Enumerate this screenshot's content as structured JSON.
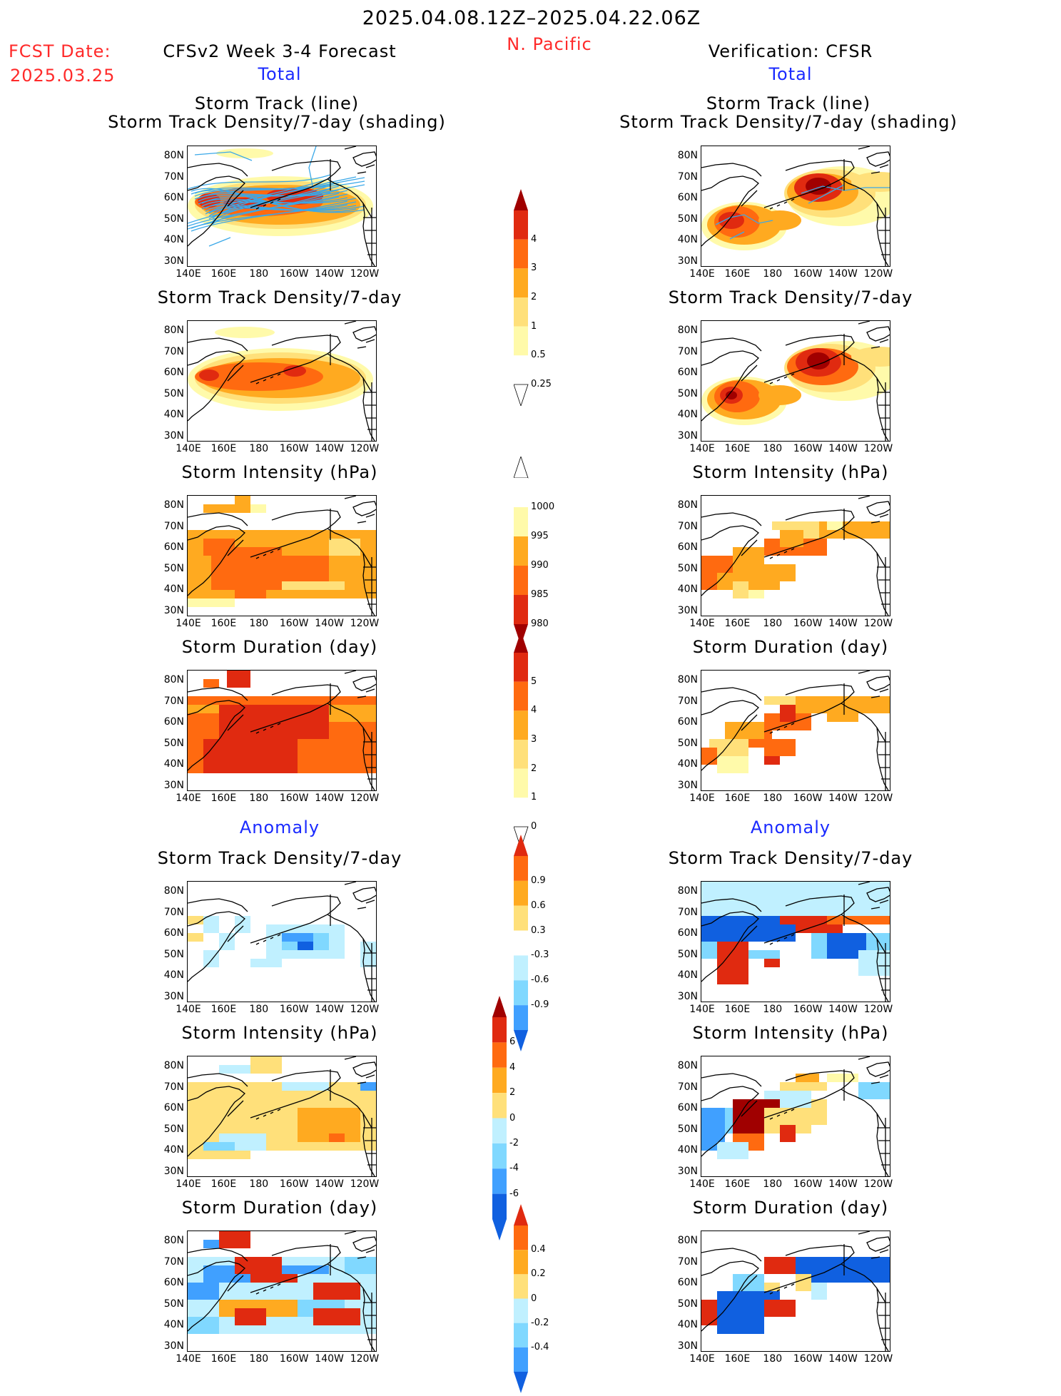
{
  "header": {
    "date_range": "2025.04.08.12Z–2025.04.22.06Z",
    "region": "N. Pacific",
    "fcst_label": "FCST Date:",
    "fcst_date": "2025.03.25",
    "left_model": "CFSv2 Week 3-4 Forecast",
    "right_model": "Verification: CFSR",
    "total_label": "Total",
    "anomaly_label": "Anomaly"
  },
  "axes": {
    "lat_ticks": [
      "80N",
      "70N",
      "60N",
      "50N",
      "40N",
      "30N"
    ],
    "lon_ticks": [
      "140E",
      "160E",
      "180",
      "160W",
      "140W",
      "120W"
    ]
  },
  "panels": {
    "track_title_1": "Storm Track (line)",
    "track_title_2": "Storm Track Density/7-day (shading)",
    "density_title": "Storm Track Density/7-day",
    "intensity_title": "Storm Intensity (hPa)",
    "duration_title": "Storm Duration (day)"
  },
  "colorbars": {
    "density": [
      "4",
      "3",
      "2",
      "1",
      "0.5",
      "0.25"
    ],
    "intensity": [
      "1000",
      "995",
      "990",
      "985",
      "980"
    ],
    "duration": [
      "5",
      "4",
      "3",
      "2",
      "1",
      "0"
    ],
    "density_anom": [
      "0.9",
      "0.6",
      "0.3",
      "-0.3",
      "-0.6",
      "-0.9"
    ],
    "intensity_anom": [
      "6",
      "4",
      "2",
      "0",
      "-2",
      "-4",
      "-6"
    ],
    "duration_anom": [
      "0.4",
      "0.2",
      "0",
      "-0.2",
      "-0.4"
    ]
  },
  "colors": {
    "warm": [
      "#fffaaa",
      "#ffe07a",
      "#ffaa20",
      "#ff6a10",
      "#e02a10",
      "#a00000"
    ],
    "cool": [
      "#c0f0ff",
      "#80d8ff",
      "#40a0ff",
      "#1060e0"
    ],
    "track_line": "#3aa8e8",
    "title_red": "#ff2a2a",
    "label_blue": "#1a2aff"
  }
}
